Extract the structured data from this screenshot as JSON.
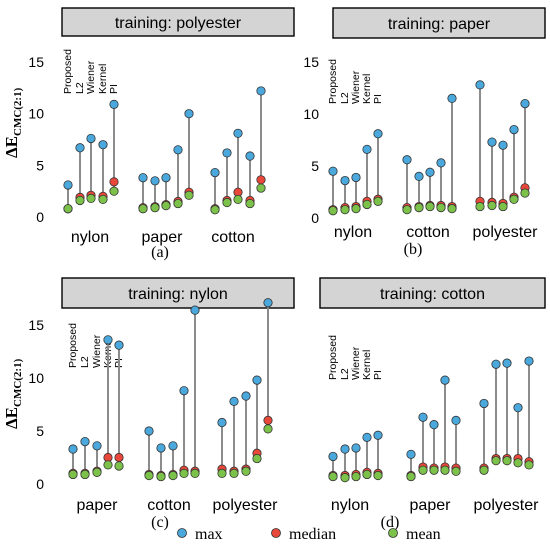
{
  "chart_data": [
    {
      "type": "scatter",
      "title": "training: polyester",
      "sublabel": "(a)",
      "ylim": [
        0,
        17
      ],
      "yticks": [
        "0",
        "5",
        "10",
        "15"
      ],
      "methods": [
        "Proposed",
        "L2",
        "Wiener",
        "Kernel",
        "PI"
      ],
      "categories": [
        "nylon",
        "paper",
        "cotton"
      ],
      "max": [
        [
          3.1,
          6.7,
          7.6,
          7.0,
          10.9
        ],
        [
          3.8,
          3.5,
          3.8,
          6.5,
          10.0
        ],
        [
          4.3,
          6.2,
          8.1,
          5.9,
          12.2
        ]
      ],
      "median": [
        [
          0.8,
          1.9,
          2.1,
          2.0,
          3.4
        ],
        [
          0.9,
          1.0,
          1.2,
          1.5,
          2.4
        ],
        [
          0.8,
          1.6,
          2.4,
          1.6,
          3.6
        ]
      ],
      "mean": [
        [
          0.8,
          1.6,
          1.8,
          1.7,
          2.5
        ],
        [
          0.8,
          0.9,
          1.1,
          1.3,
          2.1
        ],
        [
          0.7,
          1.4,
          1.7,
          1.3,
          2.8
        ]
      ]
    },
    {
      "type": "scatter",
      "title": "training: paper",
      "sublabel": "(b)",
      "ylim": [
        0,
        17
      ],
      "yticks": [
        "0",
        "5",
        "10",
        "15"
      ],
      "methods": [
        "Proposed",
        "L2",
        "Wiener",
        "Kernel",
        "PI"
      ],
      "categories": [
        "nylon",
        "cotton",
        "polyester"
      ],
      "max": [
        [
          4.5,
          3.6,
          3.9,
          6.6,
          8.1
        ],
        [
          5.6,
          4.0,
          4.4,
          5.3,
          11.5
        ],
        [
          12.8,
          7.3,
          7.0,
          8.5,
          11.0
        ]
      ],
      "median": [
        [
          0.8,
          1.0,
          1.1,
          1.6,
          1.8
        ],
        [
          1.0,
          1.1,
          1.2,
          1.2,
          1.1
        ],
        [
          1.6,
          1.5,
          1.4,
          2.0,
          2.9
        ]
      ],
      "mean": [
        [
          0.7,
          0.8,
          0.9,
          1.3,
          1.6
        ],
        [
          0.8,
          1.0,
          1.1,
          1.0,
          0.9
        ],
        [
          1.1,
          1.2,
          1.1,
          1.8,
          2.4
        ]
      ]
    },
    {
      "type": "scatter",
      "title": "training: nylon",
      "sublabel": "(c)",
      "ylim": [
        0,
        17
      ],
      "yticks": [
        "0",
        "5",
        "10",
        "15"
      ],
      "methods": [
        "Proposed",
        "L2",
        "Wiener",
        "Kernel",
        "PI"
      ],
      "categories": [
        "paper",
        "cotton",
        "polyester"
      ],
      "max": [
        [
          3.3,
          4.0,
          3.6,
          13.6,
          13.1
        ],
        [
          5.0,
          3.4,
          3.6,
          8.8,
          16.4
        ],
        [
          5.8,
          7.8,
          8.3,
          9.8,
          17.1
        ]
      ],
      "median": [
        [
          1.0,
          1.0,
          1.2,
          2.5,
          2.5
        ],
        [
          0.9,
          0.8,
          0.9,
          1.3,
          1.2
        ],
        [
          1.4,
          1.2,
          1.4,
          2.9,
          6.0
        ]
      ],
      "mean": [
        [
          0.9,
          0.9,
          1.1,
          1.8,
          1.7
        ],
        [
          0.8,
          0.7,
          0.8,
          1.0,
          1.0
        ],
        [
          1.0,
          1.0,
          1.2,
          2.4,
          5.2
        ]
      ]
    },
    {
      "type": "scatter",
      "title": "training: cotton",
      "sublabel": "(d)",
      "ylim": [
        0,
        17
      ],
      "yticks": [],
      "methods": [
        "Proposed",
        "L2",
        "Wiener",
        "Kernel",
        "PI"
      ],
      "categories": [
        "nylon",
        "paper",
        "polyester"
      ],
      "max": [
        [
          2.6,
          3.3,
          3.4,
          4.4,
          4.6
        ],
        [
          2.8,
          6.3,
          5.6,
          9.8,
          6.0
        ],
        [
          7.6,
          11.3,
          11.4,
          7.2,
          11.6
        ]
      ],
      "median": [
        [
          0.8,
          0.8,
          0.9,
          1.1,
          1.0
        ],
        [
          0.8,
          1.6,
          1.5,
          1.6,
          1.5
        ],
        [
          1.5,
          2.4,
          2.4,
          2.4,
          2.1
        ]
      ],
      "mean": [
        [
          0.7,
          0.6,
          0.7,
          0.9,
          0.8
        ],
        [
          0.7,
          1.3,
          1.3,
          1.3,
          1.2
        ],
        [
          1.3,
          2.2,
          2.2,
          2.0,
          1.8
        ]
      ]
    }
  ],
  "axis": {
    "ylabel_main": "ΔE",
    "ylabel_sub": "CMC(2:1)"
  },
  "legend": [
    {
      "label": "max",
      "color": "#4aa8dc"
    },
    {
      "label": "median",
      "color": "#e8473a"
    },
    {
      "label": "mean",
      "color": "#7cc24a"
    }
  ],
  "colors": {
    "max": "#4aa8dc",
    "median": "#e8473a",
    "mean": "#7cc24a",
    "stem": "#8c8c8c",
    "title_box": "#d4d4d4"
  }
}
